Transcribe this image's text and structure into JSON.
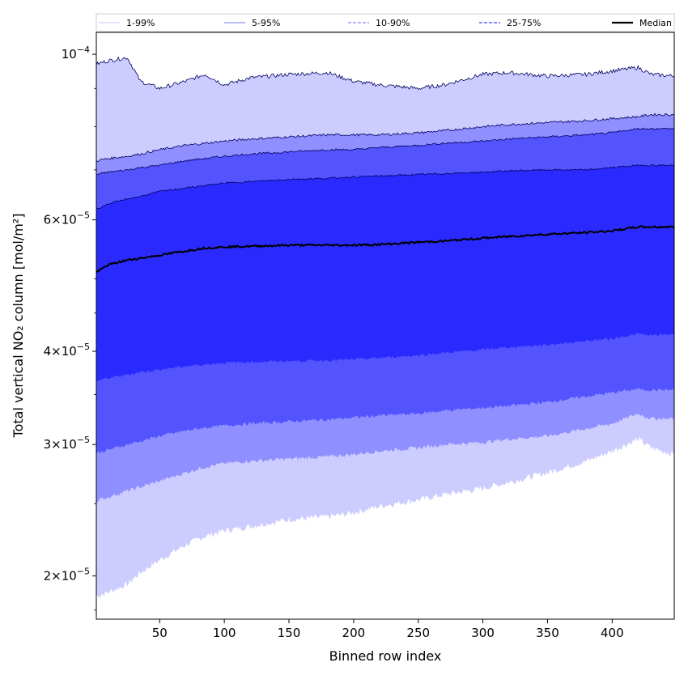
{
  "chart_data": {
    "type": "area",
    "xlabel": "Binned row index",
    "ylabel": "Total vertical NO₂ column [mol/m²]",
    "y_scale": "log",
    "xlim": [
      1,
      448
    ],
    "ylim": [
      1.75e-05,
      0.000107
    ],
    "grid": false,
    "legend_placement": "top",
    "x_ticks": [
      50,
      100,
      150,
      200,
      250,
      300,
      350,
      400
    ],
    "y_ticks": [
      {
        "value": 0.0001,
        "mantissa": "",
        "exponent": "−4"
      },
      {
        "value": 6e-05,
        "mantissa": "6",
        "exponent": "−5"
      },
      {
        "value": 4e-05,
        "mantissa": "4",
        "exponent": "−5"
      },
      {
        "value": 3e-05,
        "mantissa": "3",
        "exponent": "−5"
      },
      {
        "value": 2e-05,
        "mantissa": "2",
        "exponent": "−5"
      }
    ],
    "x": [
      1,
      10,
      25,
      35,
      50,
      70,
      85,
      100,
      120,
      150,
      180,
      200,
      220,
      250,
      270,
      300,
      320,
      350,
      380,
      400,
      420,
      430,
      448
    ],
    "series": [
      {
        "name": "1-99%",
        "role": "lower",
        "values": [
          1.88e-05,
          1.9e-05,
          1.95e-05,
          2.02e-05,
          2.1e-05,
          2.2e-05,
          2.26e-05,
          2.3e-05,
          2.33e-05,
          2.38e-05,
          2.4e-05,
          2.43e-05,
          2.48e-05,
          2.53e-05,
          2.57e-05,
          2.62e-05,
          2.67e-05,
          2.75e-05,
          2.85e-05,
          2.94e-05,
          3.05e-05,
          2.97e-05,
          2.91e-05
        ]
      },
      {
        "name": "1-99%",
        "role": "upper",
        "values": [
          9.7e-05,
          9.8e-05,
          9.9e-05,
          9.2e-05,
          9e-05,
          9.2e-05,
          9.4e-05,
          9.1e-05,
          9.3e-05,
          9.4e-05,
          9.45e-05,
          9.2e-05,
          9.1e-05,
          9e-05,
          9.1e-05,
          9.4e-05,
          9.45e-05,
          9.35e-05,
          9.4e-05,
          9.5e-05,
          9.6e-05,
          9.4e-05,
          9.35e-05
        ]
      },
      {
        "name": "5-95%",
        "role": "lower",
        "values": [
          2.52e-05,
          2.55e-05,
          2.6e-05,
          2.63e-05,
          2.68e-05,
          2.75e-05,
          2.8e-05,
          2.83e-05,
          2.85e-05,
          2.87e-05,
          2.89e-05,
          2.91e-05,
          2.94e-05,
          2.97e-05,
          3e-05,
          3.02e-05,
          3.05e-05,
          3.08e-05,
          3.15e-05,
          3.2e-05,
          3.3e-05,
          3.25e-05,
          3.25e-05
        ]
      },
      {
        "name": "5-95%",
        "role": "upper",
        "values": [
          7.2e-05,
          7.25e-05,
          7.3e-05,
          7.35e-05,
          7.45e-05,
          7.55e-05,
          7.6e-05,
          7.65e-05,
          7.7e-05,
          7.75e-05,
          7.8e-05,
          7.8e-05,
          7.8e-05,
          7.85e-05,
          7.9e-05,
          8e-05,
          8.05e-05,
          8.1e-05,
          8.15e-05,
          8.2e-05,
          8.25e-05,
          8.3e-05,
          8.3e-05
        ]
      },
      {
        "name": "10-90%",
        "role": "lower",
        "values": [
          2.92e-05,
          2.95e-05,
          3e-05,
          3.03e-05,
          3.08e-05,
          3.13e-05,
          3.16e-05,
          3.18e-05,
          3.2e-05,
          3.22e-05,
          3.24e-05,
          3.26e-05,
          3.28e-05,
          3.3e-05,
          3.33e-05,
          3.36e-05,
          3.38e-05,
          3.42e-05,
          3.48e-05,
          3.52e-05,
          3.56e-05,
          3.55e-05,
          3.55e-05
        ]
      },
      {
        "name": "10-90%",
        "role": "upper",
        "values": [
          6.9e-05,
          6.95e-05,
          7e-05,
          7.05e-05,
          7.1e-05,
          7.2e-05,
          7.25e-05,
          7.3e-05,
          7.35e-05,
          7.4e-05,
          7.45e-05,
          7.45e-05,
          7.5e-05,
          7.55e-05,
          7.6e-05,
          7.65e-05,
          7.7e-05,
          7.75e-05,
          7.8e-05,
          7.85e-05,
          7.95e-05,
          7.95e-05,
          7.95e-05
        ]
      },
      {
        "name": "25-75%",
        "role": "lower",
        "values": [
          3.65e-05,
          3.68e-05,
          3.72e-05,
          3.75e-05,
          3.78e-05,
          3.82e-05,
          3.84e-05,
          3.86e-05,
          3.87e-05,
          3.88e-05,
          3.89e-05,
          3.9e-05,
          3.92e-05,
          3.95e-05,
          3.98e-05,
          4.02e-05,
          4.05e-05,
          4.08e-05,
          4.13e-05,
          4.16e-05,
          4.22e-05,
          4.2e-05,
          4.22e-05
        ]
      },
      {
        "name": "25-75%",
        "role": "upper",
        "values": [
          6.2e-05,
          6.3e-05,
          6.4e-05,
          6.45e-05,
          6.55e-05,
          6.62e-05,
          6.67e-05,
          6.72e-05,
          6.75e-05,
          6.8e-05,
          6.82e-05,
          6.85e-05,
          6.87e-05,
          6.9e-05,
          6.92e-05,
          6.95e-05,
          6.98e-05,
          7e-05,
          7e-05,
          7.05e-05,
          7.1e-05,
          7.1e-05,
          7.1e-05
        ]
      },
      {
        "name": "Median",
        "role": "line",
        "values": [
          5.1e-05,
          5.22e-05,
          5.3e-05,
          5.33e-05,
          5.38e-05,
          5.45e-05,
          5.5e-05,
          5.52e-05,
          5.53e-05,
          5.55e-05,
          5.55e-05,
          5.55e-05,
          5.56e-05,
          5.6e-05,
          5.62e-05,
          5.67e-05,
          5.7e-05,
          5.74e-05,
          5.77e-05,
          5.8e-05,
          5.87e-05,
          5.87e-05,
          5.87e-05
        ]
      }
    ],
    "legend": [
      {
        "label": "1-99%",
        "color": "#d0d0ff",
        "style": "solid"
      },
      {
        "label": "5-95%",
        "color": "#9090ff",
        "style": "solid"
      },
      {
        "label": "10-90%",
        "color": "#8080ff",
        "style": "dashed"
      },
      {
        "label": "25-75%",
        "color": "#4040ff",
        "style": "dashed"
      },
      {
        "label": "Median",
        "color": "#000000",
        "style": "solid"
      }
    ],
    "colors": {
      "band_1_99": "#ccccff",
      "band_5_95": "#8f8fff",
      "band_10_90": "#5454ff",
      "band_25_75": "#2a2aff",
      "median": "#000000",
      "outline": "#000060"
    }
  }
}
